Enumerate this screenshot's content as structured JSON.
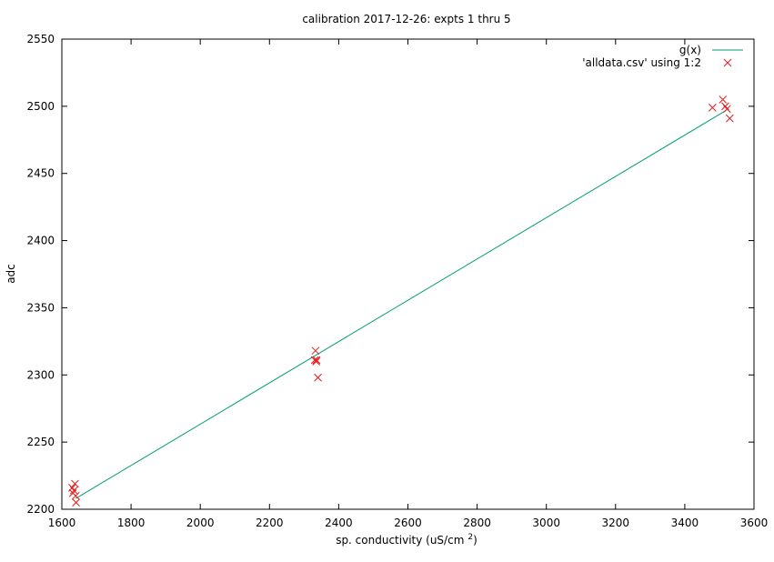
{
  "chart_data": {
    "type": "scatter",
    "title": "calibration 2017-12-26: expts 1 thru 5",
    "xlabel": "sp. conductivity (uS/cm",
    "xlabel_sup": "2",
    "xlabel_end": ")",
    "ylabel": "adc",
    "xlim": [
      1600,
      3600
    ],
    "ylim": [
      2200,
      2550
    ],
    "xticks": [
      1600,
      1800,
      2000,
      2200,
      2400,
      2600,
      2800,
      3000,
      3200,
      3400,
      3600
    ],
    "yticks": [
      2200,
      2250,
      2300,
      2350,
      2400,
      2450,
      2500,
      2550
    ],
    "grid": false,
    "legend_position": "top-right",
    "series": [
      {
        "name": "g(x)",
        "kind": "line",
        "color": "#009e73",
        "points": [
          [
            1640,
            2208
          ],
          [
            3520,
            2497
          ]
        ]
      },
      {
        "name": "'alldata.csv' using 1:2",
        "kind": "points",
        "marker": "x",
        "color": "#e41a1c",
        "points": [
          [
            1630,
            2216
          ],
          [
            1632,
            2212
          ],
          [
            1635,
            2214
          ],
          [
            1638,
            2219
          ],
          [
            1640,
            2210
          ],
          [
            1641,
            2205
          ],
          [
            2333,
            2318
          ],
          [
            2331,
            2311
          ],
          [
            2335,
            2310
          ],
          [
            2336,
            2311
          ],
          [
            2340,
            2298
          ],
          [
            3480,
            2499
          ],
          [
            3510,
            2505
          ],
          [
            3517,
            2500
          ],
          [
            3522,
            2498
          ],
          [
            3530,
            2491
          ]
        ]
      }
    ]
  }
}
